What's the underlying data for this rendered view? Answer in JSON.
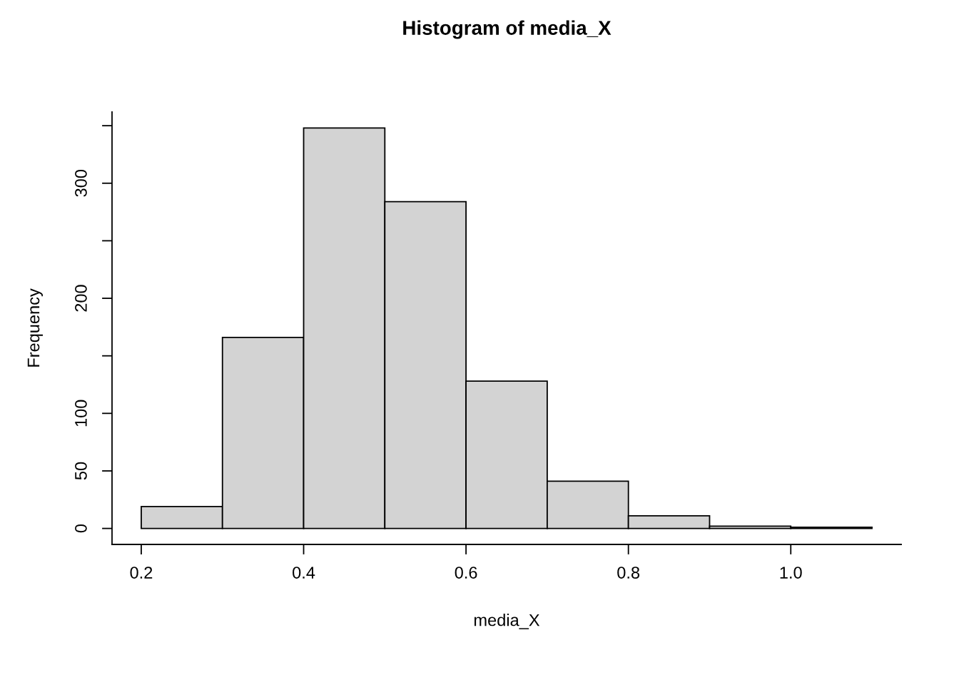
{
  "chart_data": {
    "type": "histogram",
    "title": "Histogram of media_X",
    "xlabel": "media_X",
    "ylabel": "Frequency",
    "bins": [
      0.2,
      0.3,
      0.4,
      0.5,
      0.6,
      0.7,
      0.8,
      0.9,
      1.0,
      1.1
    ],
    "values": [
      19,
      166,
      348,
      284,
      128,
      41,
      11,
      2,
      1
    ],
    "color": "#d3d3d3",
    "xlim": [
      0.164,
      1.136
    ],
    "ylim": [
      -13.9,
      361.9
    ],
    "xticks": [
      {
        "value": 0.2,
        "label": "0.2"
      },
      {
        "value": 0.4,
        "label": "0.4"
      },
      {
        "value": 0.6,
        "label": "0.6"
      },
      {
        "value": 0.8,
        "label": "0.8"
      },
      {
        "value": 1.0,
        "label": "1.0"
      }
    ],
    "yticks": [
      0,
      50,
      100,
      {
        "value": 150,
        "label": null
      },
      200,
      {
        "value": 250,
        "label": null
      },
      300,
      {
        "value": 350,
        "label": null
      }
    ],
    "grid": false,
    "legend": false
  }
}
